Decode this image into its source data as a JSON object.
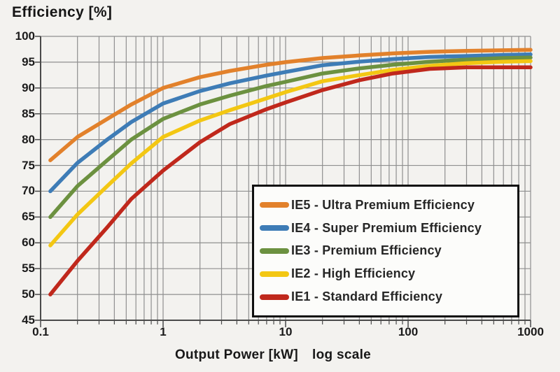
{
  "title": "Efficiency [%]",
  "x_axis": {
    "label": "Output Power [kW]",
    "scale_note": "log scale",
    "tick_labels": [
      "0.1",
      "1",
      "10",
      "100",
      "1000"
    ]
  },
  "y_axis": {
    "tick_labels": [
      "100",
      "95",
      "90",
      "85",
      "80",
      "75",
      "70",
      "65",
      "60",
      "55",
      "50",
      "45"
    ]
  },
  "colors": {
    "background": "#f3f2ef",
    "grid": "#8f8f8f",
    "axis": "#4a4a4a",
    "text": "#1c1c1c",
    "legend_background": "#fcfcfa",
    "legend_border": "#0f0f0f"
  },
  "legend": {
    "items": [
      {
        "label": "IE5 - Ultra Premium Efficiency",
        "color": "#E2812B"
      },
      {
        "label": "IE4 - Super Premium Efficiency",
        "color": "#3E7CB6"
      },
      {
        "label": "IE3 - Premium Efficiency",
        "color": "#6C9140"
      },
      {
        "label": "IE2 - High Efficiency",
        "color": "#F3C713"
      },
      {
        "label": "IE1 - Standard Efficiency",
        "color": "#C0281C"
      }
    ]
  },
  "chart_data": {
    "type": "line",
    "title": "Efficiency [%]",
    "xlabel": "Output Power [kW] log scale",
    "ylabel": "Efficiency [%]",
    "x_scale": "log",
    "xlim": [
      0.1,
      1000
    ],
    "ylim": [
      45,
      100
    ],
    "y_tick_step": 5,
    "grid": true,
    "legend_position": "inside-bottom-right",
    "x": [
      0.12,
      0.2,
      0.35,
      0.55,
      1,
      2,
      3.5,
      7,
      10,
      20,
      40,
      75,
      150,
      300,
      600,
      1000
    ],
    "series": [
      {
        "name": "IE5 - Ultra Premium Efficiency",
        "color": "#E2812B",
        "values": [
          76,
          80.5,
          84,
          86.8,
          90,
          92.1,
          93.3,
          94.5,
          95,
          95.8,
          96.3,
          96.7,
          97,
          97.2,
          97.3,
          97.4
        ]
      },
      {
        "name": "IE4 - Super Premium Efficiency",
        "color": "#3E7CB6",
        "values": [
          70,
          75.5,
          80,
          83.4,
          87,
          89.4,
          90.9,
          92.4,
          93.1,
          94.4,
          95.1,
          95.6,
          96,
          96.2,
          96.4,
          96.5
        ]
      },
      {
        "name": "IE3 - Premium Efficiency",
        "color": "#6C9140",
        "values": [
          65,
          71,
          76,
          80,
          84,
          86.8,
          88.5,
          90.4,
          91.2,
          92.8,
          93.8,
          94.5,
          95.1,
          95.5,
          95.8,
          95.9
        ]
      },
      {
        "name": "IE2 - High Efficiency",
        "color": "#F3C713",
        "values": [
          59.5,
          65.5,
          71,
          75.4,
          80.5,
          83.7,
          85.7,
          88,
          89.2,
          91.3,
          92.5,
          93.5,
          94.3,
          94.8,
          95.1,
          95.2
        ]
      },
      {
        "name": "IE1 - Standard Efficiency",
        "color": "#C0281C",
        "values": [
          50,
          56.5,
          63,
          68.5,
          74,
          79.5,
          83,
          85.9,
          87.2,
          89.6,
          91.5,
          92.8,
          93.7,
          94,
          94,
          94
        ]
      }
    ]
  }
}
